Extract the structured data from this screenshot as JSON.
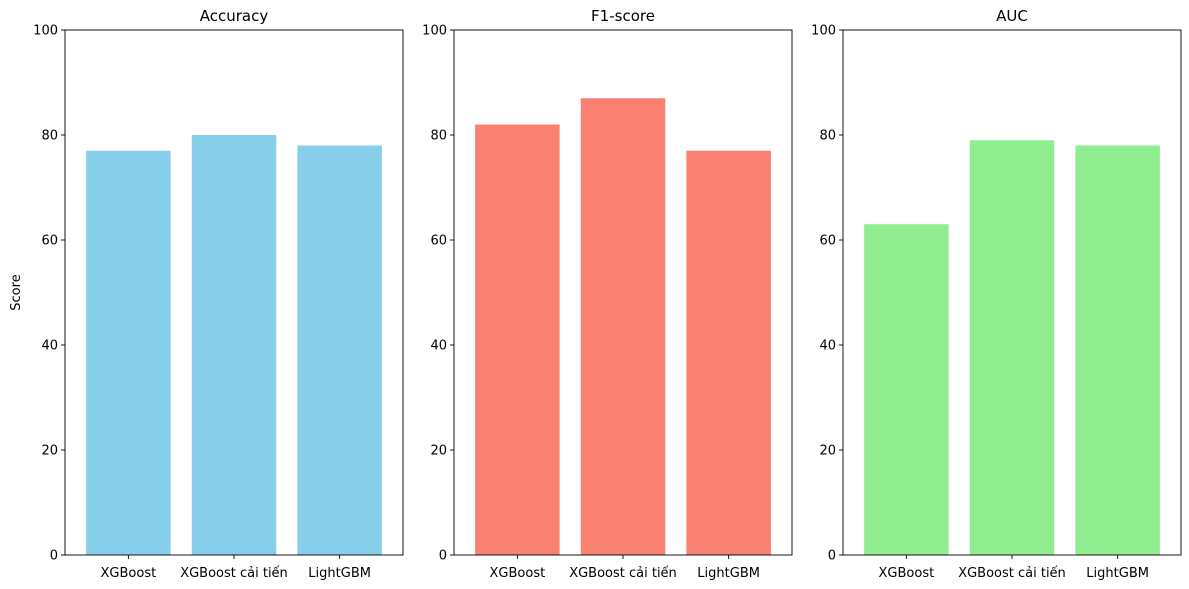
{
  "chart_data": [
    {
      "type": "bar",
      "title": "Accuracy",
      "ylabel": "Score",
      "xlabel": "",
      "categories": [
        "XGBoost",
        "XGBoost cải tiến",
        "LightGBM"
      ],
      "values": [
        77,
        80,
        78
      ],
      "ylim": [
        0,
        100
      ],
      "yticks": [
        0,
        20,
        40,
        60,
        80,
        100
      ],
      "color": "#87CEEB",
      "grid": false
    },
    {
      "type": "bar",
      "title": "F1-score",
      "ylabel": "",
      "xlabel": "",
      "categories": [
        "XGBoost",
        "XGBoost cải tiến",
        "LightGBM"
      ],
      "values": [
        82,
        87,
        77
      ],
      "ylim": [
        0,
        100
      ],
      "yticks": [
        0,
        20,
        40,
        60,
        80,
        100
      ],
      "color": "#FA8072",
      "grid": false
    },
    {
      "type": "bar",
      "title": "AUC",
      "ylabel": "",
      "xlabel": "",
      "categories": [
        "XGBoost",
        "XGBoost cải tiến",
        "LightGBM"
      ],
      "values": [
        63,
        79,
        78
      ],
      "ylim": [
        0,
        100
      ],
      "yticks": [
        0,
        20,
        40,
        60,
        80,
        100
      ],
      "color": "#90EE90",
      "grid": false
    }
  ]
}
